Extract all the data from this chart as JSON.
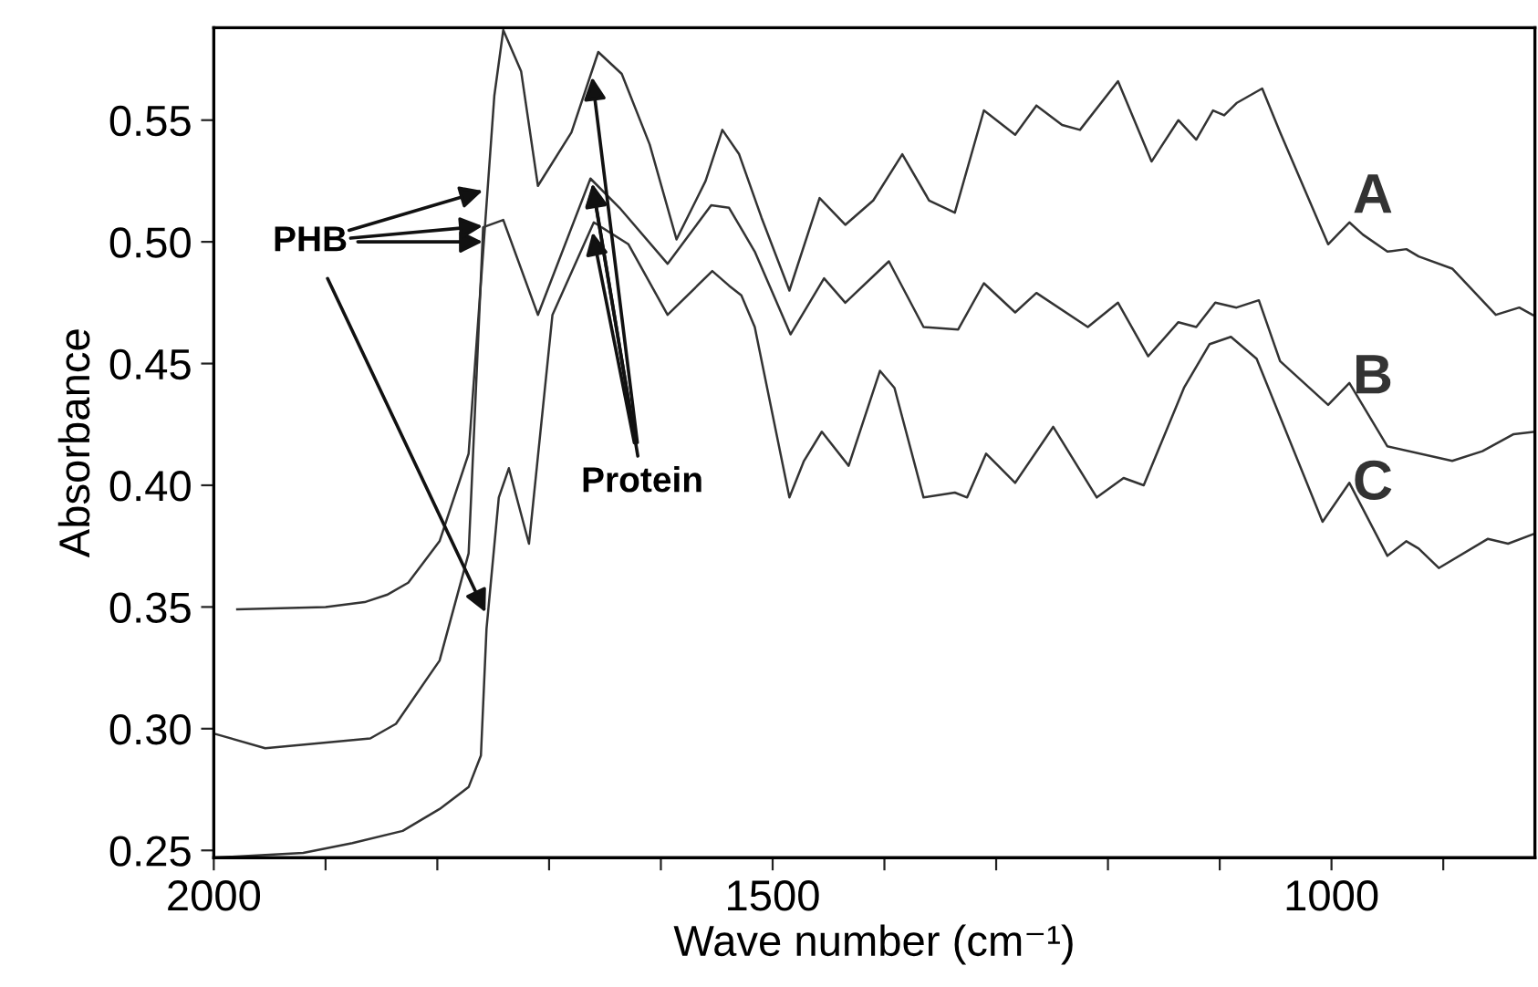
{
  "chart_data": {
    "type": "line",
    "xlabel": "Wave number (cm⁻¹)",
    "ylabel": "Absorbance",
    "xlim": [
      2000,
      818
    ],
    "ylim": [
      0.247,
      0.588
    ],
    "xticks": [
      2000,
      {
        "value": 1900,
        "label": null
      },
      {
        "value": 1800,
        "label": null
      },
      {
        "value": 1700,
        "label": null
      },
      {
        "value": 1600,
        "label": null
      },
      1500,
      {
        "value": 1400,
        "label": null
      },
      {
        "value": 1300,
        "label": null
      },
      {
        "value": 1200,
        "label": null
      },
      {
        "value": 1100,
        "label": null
      },
      1000,
      {
        "value": 900,
        "label": null
      }
    ],
    "yticks": [
      0.25,
      {
        "value": 0.3,
        "label": "0.30"
      },
      0.35,
      {
        "value": 0.4,
        "label": "0.40"
      },
      0.45,
      {
        "value": 0.5,
        "label": "0.50"
      },
      0.55
    ],
    "grid": false,
    "legend": false,
    "marker": "none",
    "line_style": "solid",
    "series": [
      {
        "name": "A",
        "color": "#333333",
        "x": [
          1979,
          1900,
          1865,
          1845,
          1826,
          1798,
          1772,
          1759,
          1749,
          1741,
          1725,
          1710,
          1680,
          1656,
          1635,
          1610,
          1586,
          1560,
          1545,
          1530,
          1510,
          1485,
          1458,
          1435,
          1410,
          1384,
          1360,
          1337,
          1311,
          1283,
          1264,
          1241,
          1225,
          1191,
          1161,
          1137,
          1121,
          1106,
          1096,
          1085,
          1062,
          1046,
          1003,
          984,
          972,
          950,
          933,
          922,
          892,
          853,
          832,
          820
        ],
        "values": [
          0.349,
          0.35,
          0.352,
          0.355,
          0.36,
          0.377,
          0.413,
          0.496,
          0.56,
          0.587,
          0.57,
          0.523,
          0.545,
          0.578,
          0.569,
          0.54,
          0.501,
          0.525,
          0.546,
          0.536,
          0.51,
          0.48,
          0.518,
          0.507,
          0.517,
          0.536,
          0.517,
          0.512,
          0.554,
          0.544,
          0.556,
          0.548,
          0.546,
          0.566,
          0.533,
          0.55,
          0.542,
          0.554,
          0.552,
          0.557,
          0.563,
          0.545,
          0.499,
          0.508,
          0.503,
          0.496,
          0.497,
          0.494,
          0.489,
          0.47,
          0.473,
          0.47
        ]
      },
      {
        "name": "B",
        "color": "#333333",
        "x": [
          2000,
          1954,
          1860,
          1837,
          1798,
          1772,
          1759,
          1741,
          1710,
          1663,
          1637,
          1594,
          1555,
          1539,
          1516,
          1484,
          1454,
          1435,
          1396,
          1365,
          1334,
          1311,
          1283,
          1264,
          1218,
          1191,
          1164,
          1137,
          1121,
          1104,
          1085,
          1065,
          1046,
          1003,
          984,
          950,
          892,
          865,
          837,
          818
        ],
        "values": [
          0.298,
          0.292,
          0.296,
          0.302,
          0.328,
          0.372,
          0.506,
          0.509,
          0.47,
          0.526,
          0.514,
          0.491,
          0.515,
          0.514,
          0.496,
          0.462,
          0.485,
          0.475,
          0.492,
          0.465,
          0.464,
          0.483,
          0.471,
          0.479,
          0.465,
          0.475,
          0.453,
          0.467,
          0.465,
          0.475,
          0.473,
          0.476,
          0.451,
          0.433,
          0.442,
          0.416,
          0.41,
          0.414,
          0.421,
          0.422
        ]
      },
      {
        "name": "C",
        "color": "#333333",
        "x": [
          2000,
          1920,
          1876,
          1831,
          1798,
          1772,
          1761,
          1756,
          1745,
          1736,
          1718,
          1697,
          1660,
          1629,
          1594,
          1554,
          1539,
          1528,
          1516,
          1485,
          1472,
          1456,
          1432,
          1404,
          1391,
          1365,
          1337,
          1326,
          1309,
          1283,
          1249,
          1210,
          1186,
          1168,
          1132,
          1109,
          1090,
          1067,
          1008,
          984,
          950,
          933,
          922,
          904,
          860,
          842,
          819
        ],
        "values": [
          0.247,
          0.249,
          0.253,
          0.258,
          0.267,
          0.276,
          0.289,
          0.341,
          0.395,
          0.407,
          0.376,
          0.47,
          0.508,
          0.499,
          0.47,
          0.488,
          0.482,
          0.478,
          0.465,
          0.395,
          0.41,
          0.422,
          0.408,
          0.447,
          0.44,
          0.395,
          0.397,
          0.395,
          0.413,
          0.401,
          0.424,
          0.395,
          0.403,
          0.4,
          0.44,
          0.458,
          0.461,
          0.452,
          0.385,
          0.401,
          0.371,
          0.377,
          0.374,
          0.366,
          0.378,
          0.376,
          0.38
        ]
      }
    ],
    "annotations": [
      {
        "text": "PHB",
        "x": 1755,
        "y": 0.5
      },
      {
        "text": "Protein",
        "x": 1662,
        "y": 0.526
      }
    ]
  }
}
